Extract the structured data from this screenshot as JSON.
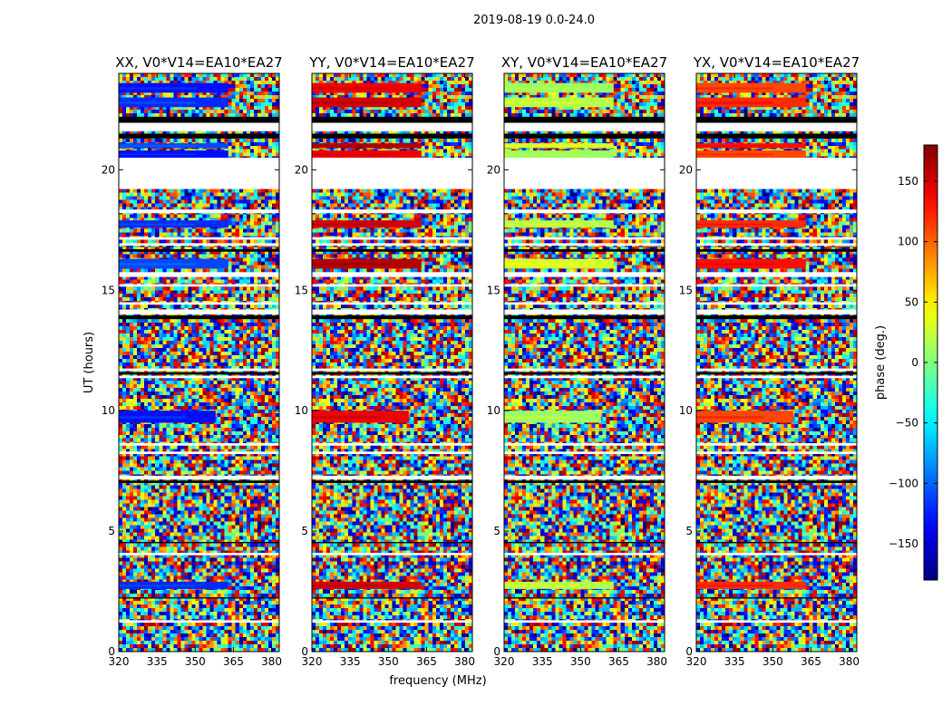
{
  "chart_data": {
    "type": "heatmap",
    "suptitle": "2019-08-19 0.0-24.0",
    "xlabel": "frequency (MHz)",
    "ylabel": "UT (hours)",
    "xlim": [
      320,
      383
    ],
    "ylim": [
      0,
      24
    ],
    "xticks": [
      320,
      335,
      350,
      365,
      380
    ],
    "yticks": [
      0,
      5,
      10,
      15,
      20
    ],
    "colorbar": {
      "label": "phase (deg.)",
      "range": [
        -180,
        180
      ],
      "ticks": [
        150,
        100,
        50,
        0,
        -50,
        -100,
        -150
      ],
      "tick_labels": [
        "150",
        "100",
        "50",
        "0",
        "−50",
        "−100",
        "−150"
      ],
      "colormap": "jet"
    },
    "panels": [
      {
        "title": "XX, V0*V14=EA10*EA27",
        "coherent_phase": -120
      },
      {
        "title": "YY, V0*V14=EA10*EA27",
        "coherent_phase": 150
      },
      {
        "title": "XY, V0*V14=EA10*EA27",
        "coherent_phase": 20
      },
      {
        "title": "YX, V0*V14=EA10*EA27",
        "coherent_phase": 120
      }
    ],
    "coherent_bands": [
      {
        "ut": [
          23.6,
          23.2
        ],
        "freq_end": 363
      },
      {
        "ut": [
          22.6,
          23.0
        ],
        "freq_end": 363
      },
      {
        "ut": [
          21.1,
          20.9
        ],
        "freq_end": 363
      },
      {
        "ut": [
          20.8,
          20.5
        ],
        "freq_end": 363
      },
      {
        "ut": [
          17.9,
          17.6
        ],
        "freq_end": 363
      },
      {
        "ut": [
          16.3,
          15.9
        ],
        "freq_end": 363
      },
      {
        "ut": [
          10.0,
          9.5
        ],
        "freq_end": 358
      },
      {
        "ut": [
          2.9,
          2.6
        ],
        "freq_end": 363
      }
    ],
    "blank_bands": [
      [
        21.6,
        21.95
      ],
      [
        19.2,
        20.5
      ],
      [
        18.2,
        18.35
      ],
      [
        17.1,
        17.2
      ],
      [
        16.85,
        16.95
      ],
      [
        15.55,
        15.75
      ],
      [
        15.15,
        15.25
      ],
      [
        14.4,
        14.5
      ],
      [
        14.0,
        14.2
      ],
      [
        11.65,
        11.75
      ],
      [
        11.35,
        11.45
      ],
      [
        8.55,
        8.65
      ],
      [
        8.2,
        8.3
      ],
      [
        7.15,
        7.3
      ],
      [
        4.0,
        4.1
      ],
      [
        1.2,
        1.3
      ]
    ],
    "black_bands": [
      [
        21.95,
        22.2
      ],
      [
        21.3,
        21.5
      ],
      [
        16.6,
        16.7
      ],
      [
        13.8,
        13.95
      ],
      [
        11.5,
        11.6
      ],
      [
        7.0,
        7.1
      ],
      [
        4.5,
        4.55
      ],
      [
        2.2,
        2.25
      ]
    ]
  }
}
